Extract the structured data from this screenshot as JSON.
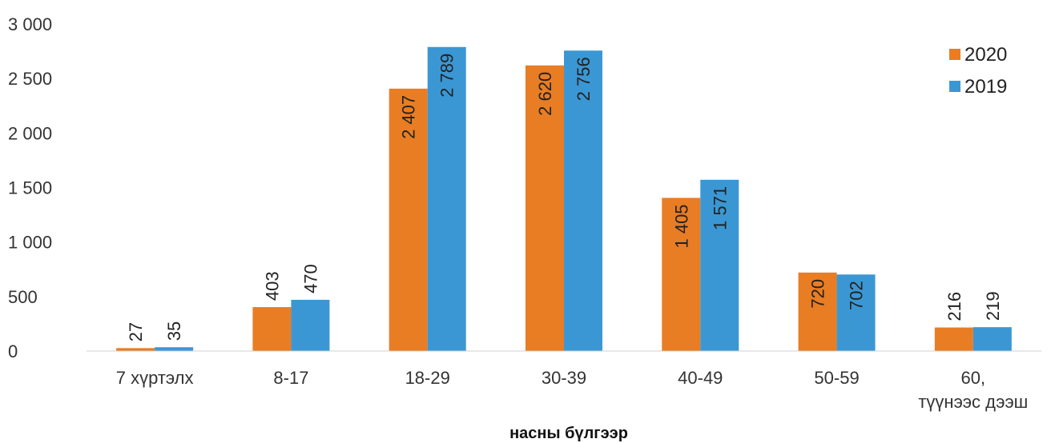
{
  "chart_data": {
    "type": "bar",
    "title": "",
    "xlabel": "насны бүлгээр",
    "ylabel": "",
    "ylim": [
      0,
      3000
    ],
    "yticks": [
      "0",
      "500",
      "1 000",
      "1 500",
      "2 000",
      "2 500",
      "3 000"
    ],
    "categories": [
      "7 хүртэлх",
      "8-17",
      "18-29",
      "30-39",
      "40-49",
      "50-59",
      "60, түүнээс дээш"
    ],
    "series": [
      {
        "name": "2020",
        "color": "#E87D24",
        "values": [
          27,
          403,
          2407,
          2620,
          1405,
          720,
          216
        ],
        "labels": [
          "27",
          "403",
          "2 407",
          "2 620",
          "1 405",
          "720",
          "216"
        ]
      },
      {
        "name": "2019",
        "color": "#3B97D3",
        "values": [
          35,
          470,
          2789,
          2756,
          1571,
          702,
          219
        ],
        "labels": [
          "35",
          "470",
          "2 789",
          "2 756",
          "1 571",
          "702",
          "219"
        ]
      }
    ],
    "legend_position": "right",
    "grid": false
  }
}
